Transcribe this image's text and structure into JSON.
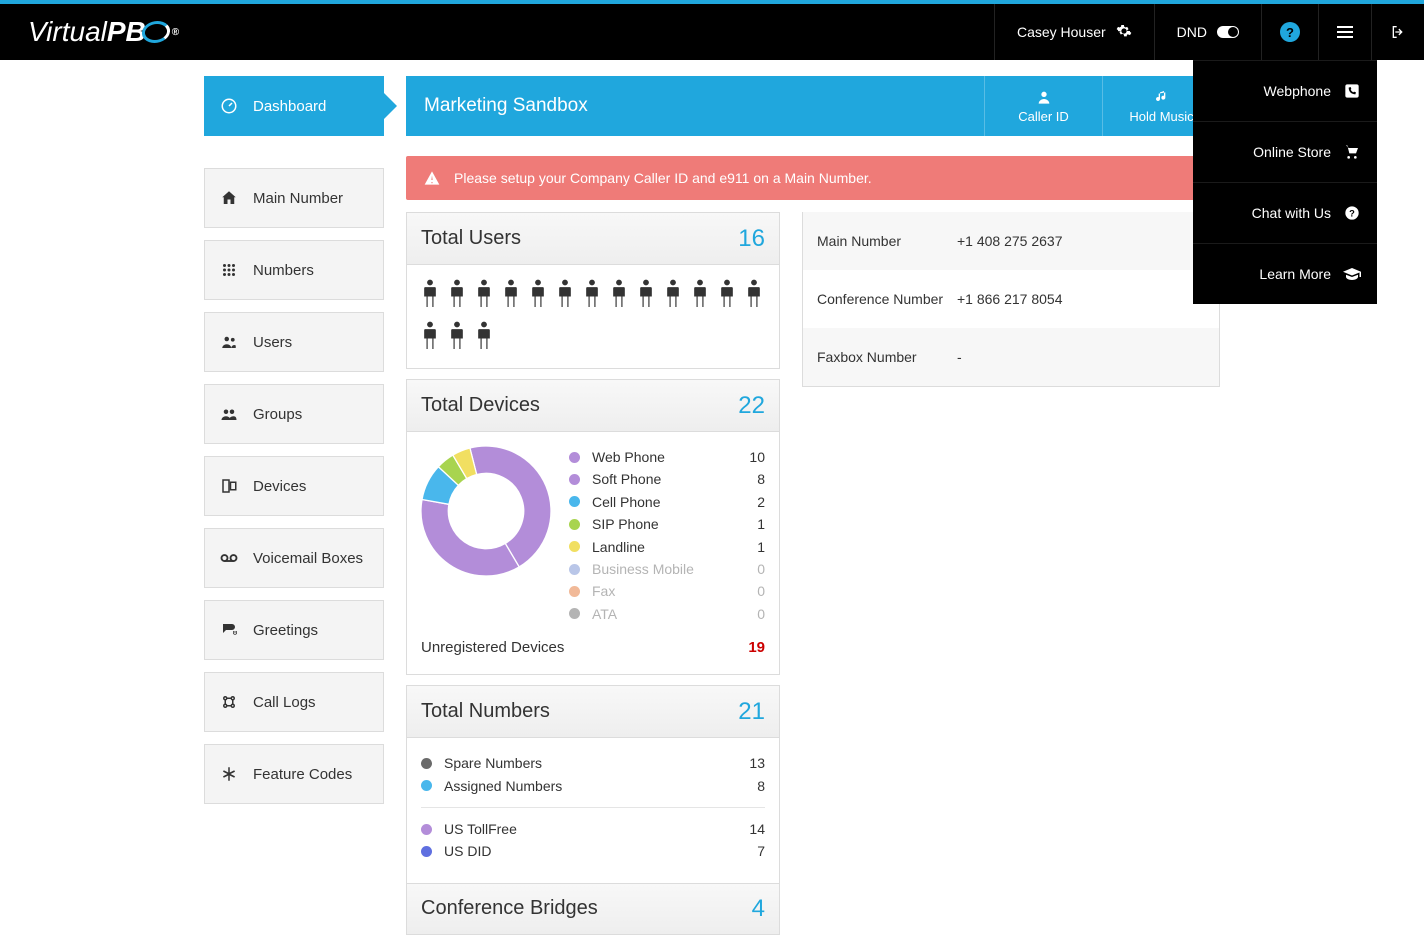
{
  "colors": {
    "accent": "#20a7dd",
    "navbar_bg": "#000000",
    "alert_bg": "#ef7b78",
    "alert_text": "#ffffff",
    "card_header_top": "#f8f8f8",
    "card_header_bottom": "#eeeeee",
    "border": "#dcdcdc",
    "count_color": "#20a7dd",
    "unregistered_color": "#cc0000",
    "dim_text": "#b4b4b4",
    "body_text": "#333333"
  },
  "brand": {
    "name": "VirtualPBX"
  },
  "navbar": {
    "user_name": "Casey Houser",
    "dnd_label": "DND"
  },
  "dropdown": {
    "items": [
      {
        "label": "Webphone",
        "icon": "phone-square"
      },
      {
        "label": "Online Store",
        "icon": "cart"
      },
      {
        "label": "Chat with Us",
        "icon": "help-circle"
      },
      {
        "label": "Learn More",
        "icon": "grad-cap"
      }
    ]
  },
  "sidebar": {
    "items": [
      {
        "label": "Dashboard",
        "icon": "gauge",
        "active": true
      },
      {
        "label": "Main Number",
        "icon": "home",
        "active": false
      },
      {
        "label": "Numbers",
        "icon": "grid",
        "active": false
      },
      {
        "label": "Users",
        "icon": "users",
        "active": false
      },
      {
        "label": "Groups",
        "icon": "group",
        "active": false
      },
      {
        "label": "Devices",
        "icon": "device",
        "active": false
      },
      {
        "label": "Voicemail Boxes",
        "icon": "voicemail",
        "active": false
      },
      {
        "label": "Greetings",
        "icon": "greeting",
        "active": false
      },
      {
        "label": "Call Logs",
        "icon": "logs",
        "active": false
      },
      {
        "label": "Feature Codes",
        "icon": "asterisk",
        "active": false
      }
    ]
  },
  "page": {
    "title": "Marketing Sandbox",
    "actions": [
      {
        "label": "Caller ID",
        "icon": "user"
      },
      {
        "label": "Hold Music",
        "icon": "music"
      }
    ]
  },
  "alert": {
    "text": "Please setup your Company Caller ID and e911 on a Main Number."
  },
  "users_card": {
    "title": "Total Users",
    "count": 16,
    "icon_color": "#333333"
  },
  "devices_card": {
    "title": "Total Devices",
    "count": 22,
    "donut_inner_radius": 0.58,
    "donut_outer_radius": 1.0,
    "legend": [
      {
        "label": "Web Phone",
        "count": 10,
        "color": "#b38dd9",
        "dim": false
      },
      {
        "label": "Soft Phone",
        "count": 8,
        "color": "#b38dd9",
        "dim": false
      },
      {
        "label": "Cell Phone",
        "count": 2,
        "color": "#49b7ec",
        "dim": false
      },
      {
        "label": "SIP Phone",
        "count": 1,
        "color": "#a8d44f",
        "dim": false
      },
      {
        "label": "Landline",
        "count": 1,
        "color": "#f1df61",
        "dim": false
      },
      {
        "label": "Business Mobile",
        "count": 0,
        "color": "#b9c6e8",
        "dim": true
      },
      {
        "label": "Fax",
        "count": 0,
        "color": "#f1b998",
        "dim": true
      },
      {
        "label": "ATA",
        "count": 0,
        "color": "#b4b4b4",
        "dim": true
      }
    ],
    "unregistered": {
      "label": "Unregistered Devices",
      "count": 19
    }
  },
  "numbers_card": {
    "title": "Total Numbers",
    "count": 21,
    "section1": [
      {
        "label": "Spare Numbers",
        "count": 13,
        "color": "#6a6a6a"
      },
      {
        "label": "Assigned Numbers",
        "count": 8,
        "color": "#49b7ec"
      }
    ],
    "section2": [
      {
        "label": "US TollFree",
        "count": 14,
        "color": "#b38dd9"
      },
      {
        "label": "US DID",
        "count": 7,
        "color": "#5f6fe0"
      }
    ]
  },
  "conference_card": {
    "title": "Conference Bridges",
    "count": 4
  },
  "info_panel": {
    "rows": [
      {
        "label": "Main Number",
        "value": "+1 408 275 2637"
      },
      {
        "label": "Conference Number",
        "value": "+1 866 217 8054"
      },
      {
        "label": "Faxbox Number",
        "value": "-"
      }
    ]
  }
}
